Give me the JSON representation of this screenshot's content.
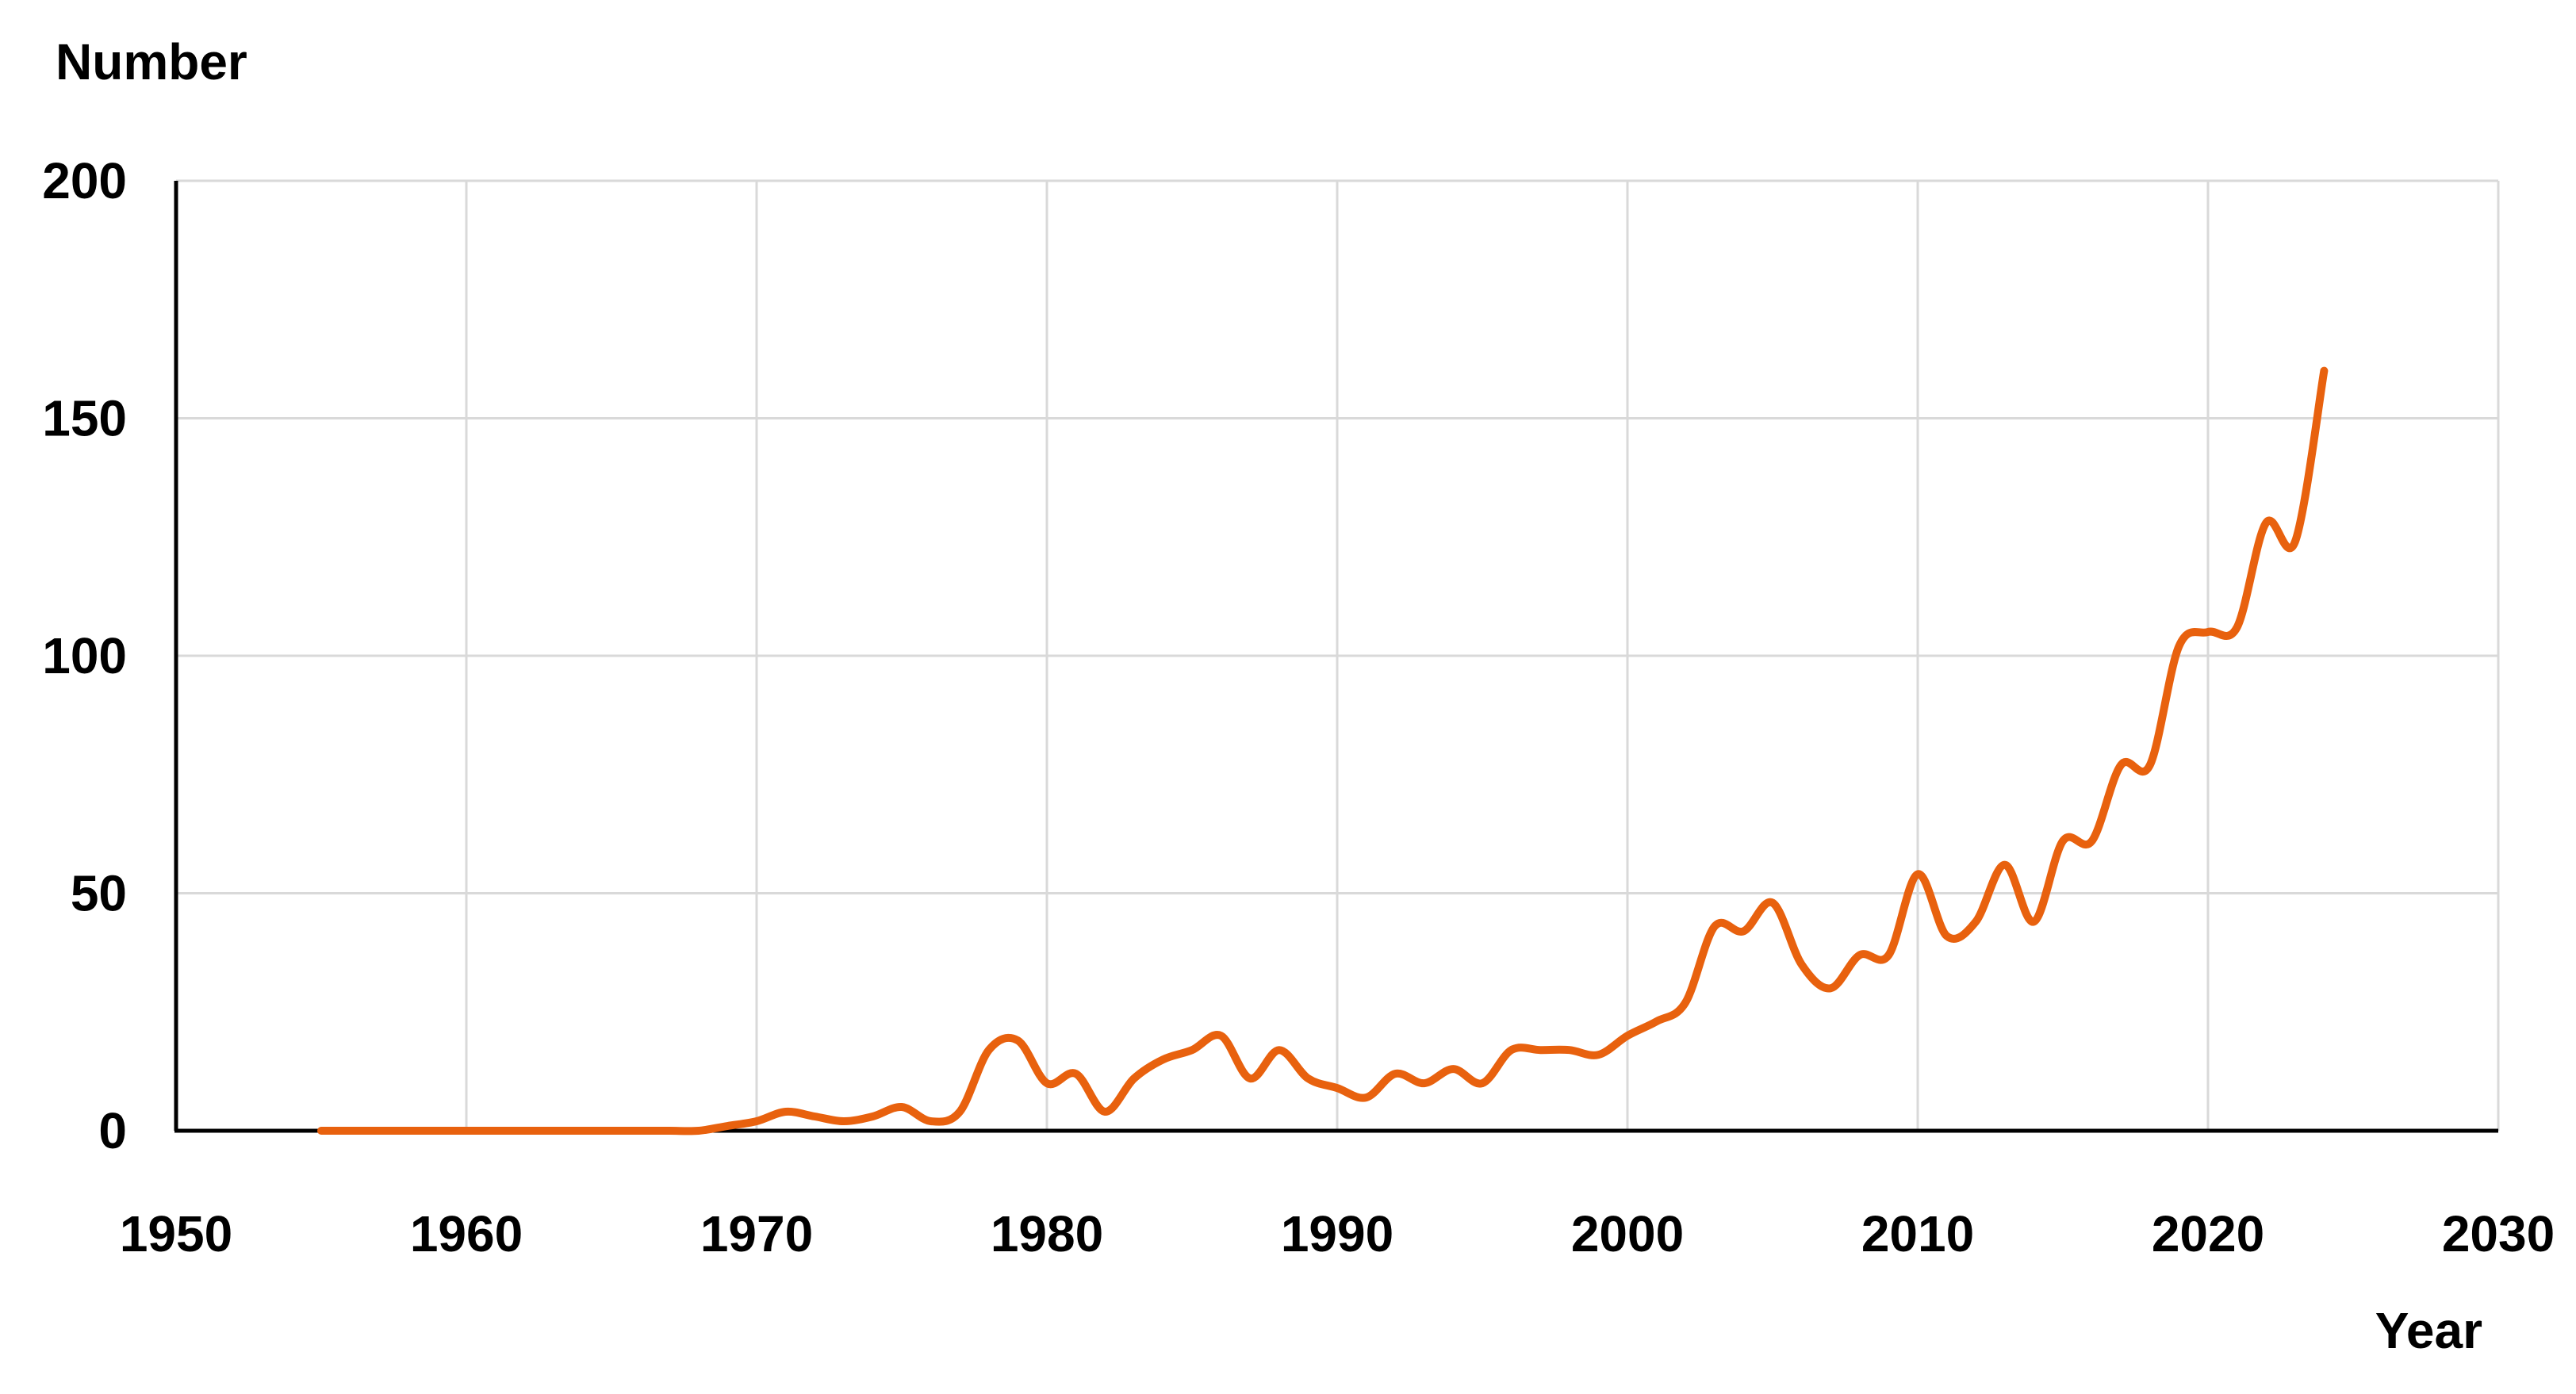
{
  "chart_data": {
    "type": "line",
    "title": "",
    "xlabel": "Year",
    "ylabel": "Number",
    "xlim": [
      1950,
      2030
    ],
    "ylim": [
      0,
      200
    ],
    "x_ticks": [
      1950,
      1960,
      1970,
      1980,
      1990,
      2000,
      2010,
      2020,
      2030
    ],
    "y_ticks": [
      0,
      50,
      100,
      150,
      200
    ],
    "x_tick_labels": [
      "1950",
      "1960",
      "1970",
      "1980",
      "1990",
      "2000",
      "2010",
      "2020",
      "2030"
    ],
    "y_tick_labels": [
      "0",
      "50",
      "100",
      "150",
      "200"
    ],
    "grid": true,
    "legend": "none",
    "series": [
      {
        "color": "#E8610E",
        "x": [
          1955,
          1956,
          1957,
          1958,
          1959,
          1960,
          1961,
          1962,
          1963,
          1964,
          1965,
          1966,
          1967,
          1968,
          1969,
          1970,
          1971,
          1972,
          1973,
          1974,
          1975,
          1976,
          1977,
          1978,
          1979,
          1980,
          1981,
          1982,
          1983,
          1984,
          1985,
          1986,
          1987,
          1988,
          1989,
          1990,
          1991,
          1992,
          1993,
          1994,
          1995,
          1996,
          1997,
          1998,
          1999,
          2000,
          2001,
          2002,
          2003,
          2004,
          2005,
          2006,
          2007,
          2008,
          2009,
          2010,
          2011,
          2012,
          2013,
          2014,
          2015,
          2016,
          2017,
          2018,
          2019,
          2020,
          2021,
          2022,
          2023,
          2024
        ],
        "values": [
          0,
          0,
          0,
          0,
          0,
          0,
          0,
          0,
          0,
          0,
          0,
          0,
          0,
          0,
          1,
          2,
          4,
          3,
          2,
          3,
          5,
          2,
          4,
          17,
          19,
          10,
          12,
          4,
          11,
          15,
          17,
          20,
          11,
          17,
          11,
          9,
          7,
          12,
          10,
          13,
          10,
          17,
          17,
          17,
          16,
          20,
          23,
          27,
          43,
          42,
          48,
          35,
          30,
          37,
          37,
          54,
          41,
          44,
          56,
          44,
          61,
          61,
          77,
          77,
          102,
          105,
          106,
          128,
          124,
          160
        ]
      }
    ]
  }
}
